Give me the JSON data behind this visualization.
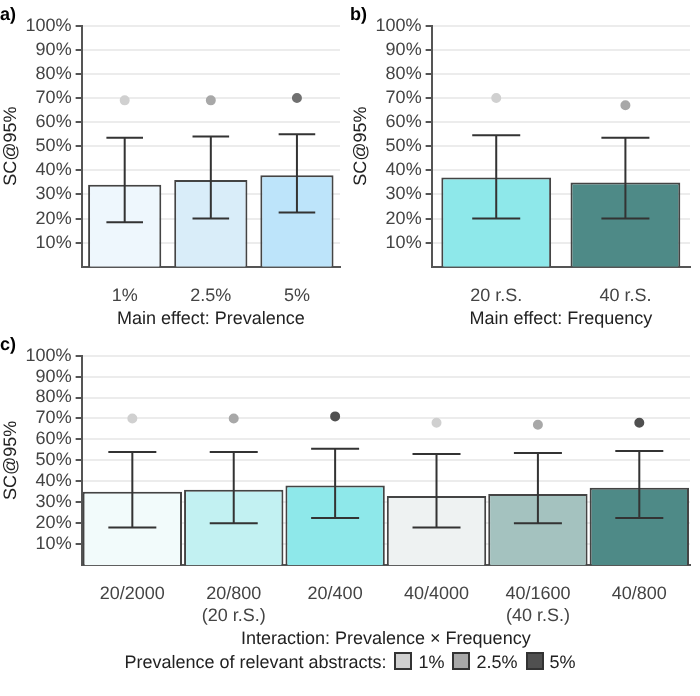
{
  "chart_data": [
    {
      "type": "bar",
      "title": "a)",
      "xlabel": "Main effect: Prevalence",
      "ylabel": "SC@95%",
      "categories": [
        "1%",
        "2.5%",
        "5%"
      ],
      "ylim": [
        0,
        100
      ],
      "yticks": [
        {
          "value": 10,
          "label": "10%"
        },
        {
          "value": 20,
          "label": "20%"
        },
        {
          "value": 30,
          "label": "30%"
        },
        {
          "value": 40,
          "label": "40%"
        },
        {
          "value": 50,
          "label": "50%"
        },
        {
          "value": 60,
          "label": "60%"
        },
        {
          "value": 70,
          "label": "70%"
        },
        {
          "value": 80,
          "label": "80%"
        },
        {
          "value": 90,
          "label": "90%"
        },
        {
          "value": 100,
          "label": "100%"
        }
      ],
      "grid": "y",
      "series": [
        {
          "type": "bar",
          "colors": [
            "#eef7fd",
            "#d9edf9",
            "#bde4fa"
          ],
          "values": [
            34,
            36,
            38
          ],
          "errors": [
            [
              18.5,
              53.5
            ],
            [
              20,
              54
            ],
            [
              22.5,
              55
            ]
          ]
        },
        {
          "type": "scatter",
          "x": [
            "1%",
            "2.5%",
            "5%"
          ],
          "colors": [
            "#d0d0d0",
            "#a8a8a8",
            "#707070"
          ],
          "values": [
            69,
            69,
            70
          ]
        }
      ]
    },
    {
      "type": "bar",
      "title": "b)",
      "xlabel": "Main effect: Frequency",
      "ylabel": "SC@95%",
      "categories": [
        "20 r.S.",
        "40 r.S."
      ],
      "ylim": [
        0,
        100
      ],
      "yticks": [
        {
          "value": 10,
          "label": "10%"
        },
        {
          "value": 20,
          "label": "20%"
        },
        {
          "value": 30,
          "label": "30%"
        },
        {
          "value": 40,
          "label": "40%"
        },
        {
          "value": 50,
          "label": "50%"
        },
        {
          "value": 60,
          "label": "60%"
        },
        {
          "value": 70,
          "label": "70%"
        },
        {
          "value": 80,
          "label": "80%"
        },
        {
          "value": 90,
          "label": "90%"
        },
        {
          "value": 100,
          "label": "100%"
        }
      ],
      "grid": "y",
      "series": [
        {
          "type": "bar",
          "colors": [
            "#8ee8ea",
            "#4e8a87"
          ],
          "values": [
            37,
            35
          ],
          "errors": [
            [
              20,
              54.5
            ],
            [
              20,
              53.5
            ]
          ]
        },
        {
          "type": "scatter",
          "x": [
            "20 r.S.",
            "40 r.S."
          ],
          "colors": [
            "#d0d0d0",
            "#a8a8a8"
          ],
          "values": [
            70,
            67
          ]
        }
      ]
    },
    {
      "type": "bar",
      "title": "c)",
      "xlabel": "Interaction: Prevalence × Frequency",
      "ylabel": "SC@95%",
      "legend_title": "Prevalence of relevant abstracts:",
      "legend": "bottom",
      "categories": [
        "20/2000",
        "20/800\n(20 r.S.)",
        "20/400",
        "40/4000",
        "40/1600\n(40 r.S.)",
        "40/800"
      ],
      "ylim": [
        0,
        100
      ],
      "yticks": [
        {
          "value": 10,
          "label": "10%"
        },
        {
          "value": 20,
          "label": "20%"
        },
        {
          "value": 30,
          "label": "30%"
        },
        {
          "value": 40,
          "label": "40%"
        },
        {
          "value": 50,
          "label": "50%"
        },
        {
          "value": 60,
          "label": "60%"
        },
        {
          "value": 70,
          "label": "70%"
        },
        {
          "value": 80,
          "label": "80%"
        },
        {
          "value": 90,
          "label": "90%"
        },
        {
          "value": 100,
          "label": "100%"
        }
      ],
      "grid": "y",
      "series": [
        {
          "type": "bar",
          "colors": [
            "#f2fbfb",
            "#c2f1f2",
            "#8ee8ea",
            "#eef2f2",
            "#a4c2bf",
            "#4e8a87"
          ],
          "values": [
            35,
            36,
            38,
            33,
            34,
            37
          ],
          "errors": [
            [
              18,
              54
            ],
            [
              20,
              54
            ],
            [
              22.5,
              55.5
            ],
            [
              18,
              53
            ],
            [
              20,
              53.5
            ],
            [
              22.5,
              54.5
            ]
          ]
        },
        {
          "type": "scatter",
          "name": "1%",
          "color": "#d0d0d0",
          "x": [
            "20/2000",
            "40/4000"
          ],
          "values": [
            70,
            68
          ]
        },
        {
          "type": "scatter",
          "name": "2.5%",
          "color": "#a8a8a8",
          "x": [
            "20/800\n(20 r.S.)",
            "40/1600\n(40 r.S.)"
          ],
          "values": [
            70,
            67
          ]
        },
        {
          "type": "scatter",
          "name": "5%",
          "color": "#505050",
          "x": [
            "20/400",
            "40/800"
          ],
          "values": [
            71,
            68
          ]
        }
      ]
    }
  ]
}
